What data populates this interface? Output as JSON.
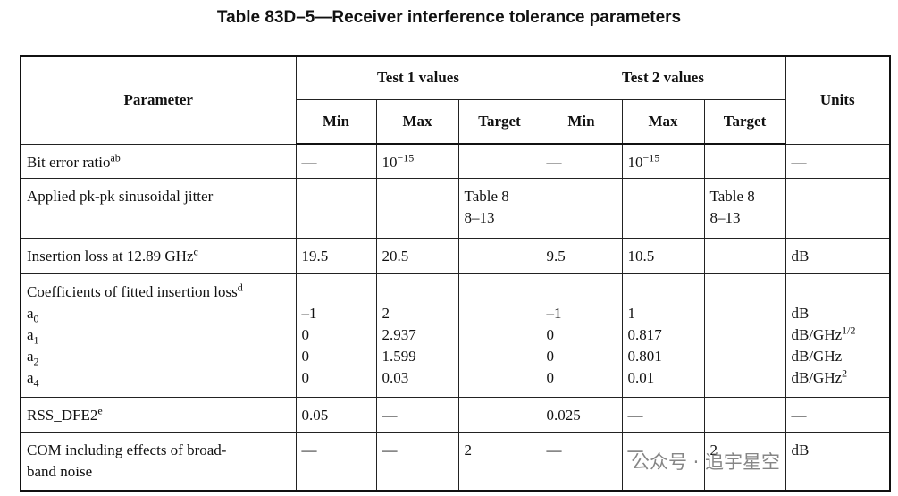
{
  "title": "Table 83D–5—Receiver interference tolerance parameters",
  "table": {
    "header": {
      "parameter": "Parameter",
      "test1": "Test 1 values",
      "test2": "Test 2 values",
      "units": "Units",
      "sub": [
        "Min",
        "Max",
        "Target",
        "Min",
        "Max",
        "Target"
      ]
    },
    "rows": [
      [
        [
          [
            "Bit error ratio",
            {
              "sup": "ab"
            }
          ]
        ],
        [
          [
            "—"
          ]
        ],
        [
          [
            "10",
            {
              "sup": "−15"
            }
          ]
        ],
        null,
        [
          [
            "—"
          ]
        ],
        [
          [
            "10",
            {
              "sup": "−15"
            }
          ]
        ],
        null,
        [
          [
            "—"
          ]
        ]
      ],
      [
        [
          [
            "Applied pk-pk sinusoidal jitter"
          ]
        ],
        null,
        null,
        [
          [
            "Table 8"
          ],
          [
            "8–13"
          ]
        ],
        null,
        null,
        [
          [
            "Table 8"
          ],
          [
            "8–13"
          ]
        ],
        null
      ],
      [
        [
          [
            "Insertion loss at 12.89 GHz",
            {
              "sup": "c"
            }
          ]
        ],
        [
          [
            "19.5"
          ]
        ],
        [
          [
            "20.5"
          ]
        ],
        null,
        [
          [
            "9.5"
          ]
        ],
        [
          [
            "10.5"
          ]
        ],
        null,
        [
          [
            "dB"
          ]
        ]
      ],
      [
        [
          [
            "Coefficients of fitted insertion loss",
            {
              "sup": "d"
            }
          ],
          [
            "a",
            {
              "sub": "0"
            }
          ],
          [
            "a",
            {
              "sub": "1"
            }
          ],
          [
            "a",
            {
              "sub": "2"
            }
          ],
          [
            "a",
            {
              "sub": "4"
            }
          ]
        ],
        [
          [],
          [
            "–1"
          ],
          [
            "0"
          ],
          [
            "0"
          ],
          [
            "0"
          ]
        ],
        [
          [],
          [
            "2"
          ],
          [
            "2.937"
          ],
          [
            "1.599"
          ],
          [
            "0.03"
          ]
        ],
        null,
        [
          [],
          [
            "–1"
          ],
          [
            "0"
          ],
          [
            "0"
          ],
          [
            "0"
          ]
        ],
        [
          [],
          [
            "1"
          ],
          [
            "0.817"
          ],
          [
            "0.801"
          ],
          [
            "0.01"
          ]
        ],
        null,
        [
          [],
          [
            "dB"
          ],
          [
            "dB/GHz",
            {
              "sup": "1/2"
            }
          ],
          [
            "dB/GHz"
          ],
          [
            "dB/GHz",
            {
              "sup": "2"
            }
          ]
        ]
      ],
      [
        [
          [
            "RSS_DFE2",
            {
              "sup": "e"
            }
          ]
        ],
        [
          [
            "0.05"
          ]
        ],
        [
          [
            "—"
          ]
        ],
        null,
        [
          [
            "0.025"
          ]
        ],
        [
          [
            "—"
          ]
        ],
        null,
        [
          [
            "—"
          ]
        ]
      ],
      [
        [
          [
            "COM including effects of broad-"
          ],
          [
            "band noise"
          ]
        ],
        [
          [
            "—"
          ]
        ],
        [
          [
            "—"
          ]
        ],
        [
          [
            "2"
          ]
        ],
        [
          [
            "—"
          ]
        ],
        [
          [
            "—"
          ]
        ],
        [
          [
            "2"
          ]
        ],
        [
          [
            "dB"
          ]
        ]
      ]
    ]
  },
  "watermark": "公众号 · 追宇星空"
}
